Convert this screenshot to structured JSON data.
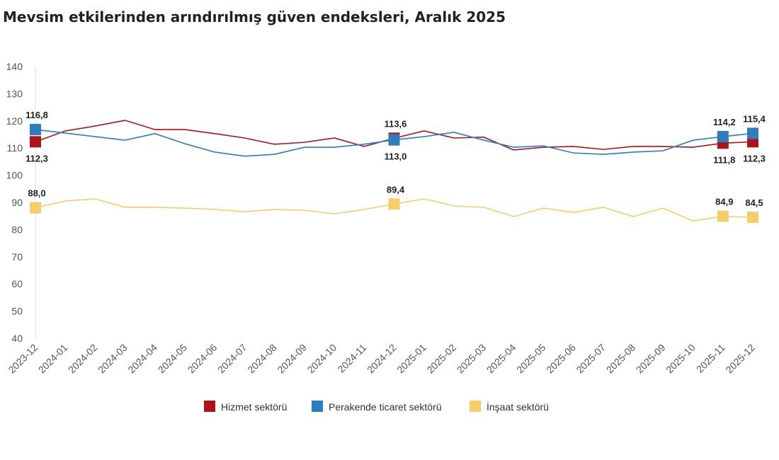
{
  "chart_data": {
    "type": "line",
    "title": "Mevsim etkilerinden arındırılmış güven endeksleri, Aralık 2025",
    "x": [
      "2023-12",
      "2024-01",
      "2024-02",
      "2024-03",
      "2024-04",
      "2024-05",
      "2024-06",
      "2024-07",
      "2024-08",
      "2024-09",
      "2024-10",
      "2024-11",
      "2024-12",
      "2025-01",
      "2025-02",
      "2025-03",
      "2025-04",
      "2025-05",
      "2025-06",
      "2025-07",
      "2025-08",
      "2025-09",
      "2025-10",
      "2025-11",
      "2025-12"
    ],
    "yticks": [
      40,
      50,
      60,
      70,
      80,
      90,
      100,
      110,
      120,
      130,
      140
    ],
    "ylim": [
      40,
      140
    ],
    "grid": false,
    "legend": "bottom",
    "labeled_indices": [
      0,
      12,
      23,
      24
    ],
    "series": [
      {
        "name": "Hizmet sektörü",
        "color": "#b0121b",
        "values": [
          112.3,
          116.3,
          118.1,
          120.2,
          116.8,
          116.8,
          115.3,
          113.7,
          111.4,
          112.1,
          113.7,
          110.6,
          113.6,
          116.3,
          113.7,
          114.0,
          109.3,
          110.3,
          110.6,
          109.5,
          110.6,
          110.6,
          110.3,
          111.8,
          112.3
        ],
        "labels": [
          "112,3",
          "113,6",
          "111,8",
          "112,3"
        ]
      },
      {
        "name": "Perakende ticaret sektörü",
        "color": "#2e7dbf",
        "values": [
          116.8,
          115.5,
          114.2,
          112.9,
          115.3,
          111.6,
          108.5,
          107.0,
          107.7,
          110.3,
          110.3,
          111.4,
          113.0,
          114.2,
          115.8,
          112.9,
          110.3,
          110.8,
          108.2,
          107.7,
          108.5,
          109.0,
          112.9,
          114.2,
          115.4
        ],
        "labels": [
          "116,8",
          "113,0",
          "114,2",
          "115,4"
        ]
      },
      {
        "name": "İnşaat sektörü",
        "color": "#f5cd6b",
        "values": [
          88.0,
          90.5,
          91.3,
          88.2,
          88.2,
          87.9,
          87.4,
          86.6,
          87.4,
          87.1,
          85.8,
          87.4,
          89.4,
          91.3,
          88.7,
          88.2,
          84.8,
          87.9,
          86.3,
          88.2,
          84.8,
          87.9,
          83.2,
          84.9,
          84.5
        ],
        "labels": [
          "88,0",
          "89,4",
          "84,9",
          "84,5"
        ]
      }
    ]
  }
}
